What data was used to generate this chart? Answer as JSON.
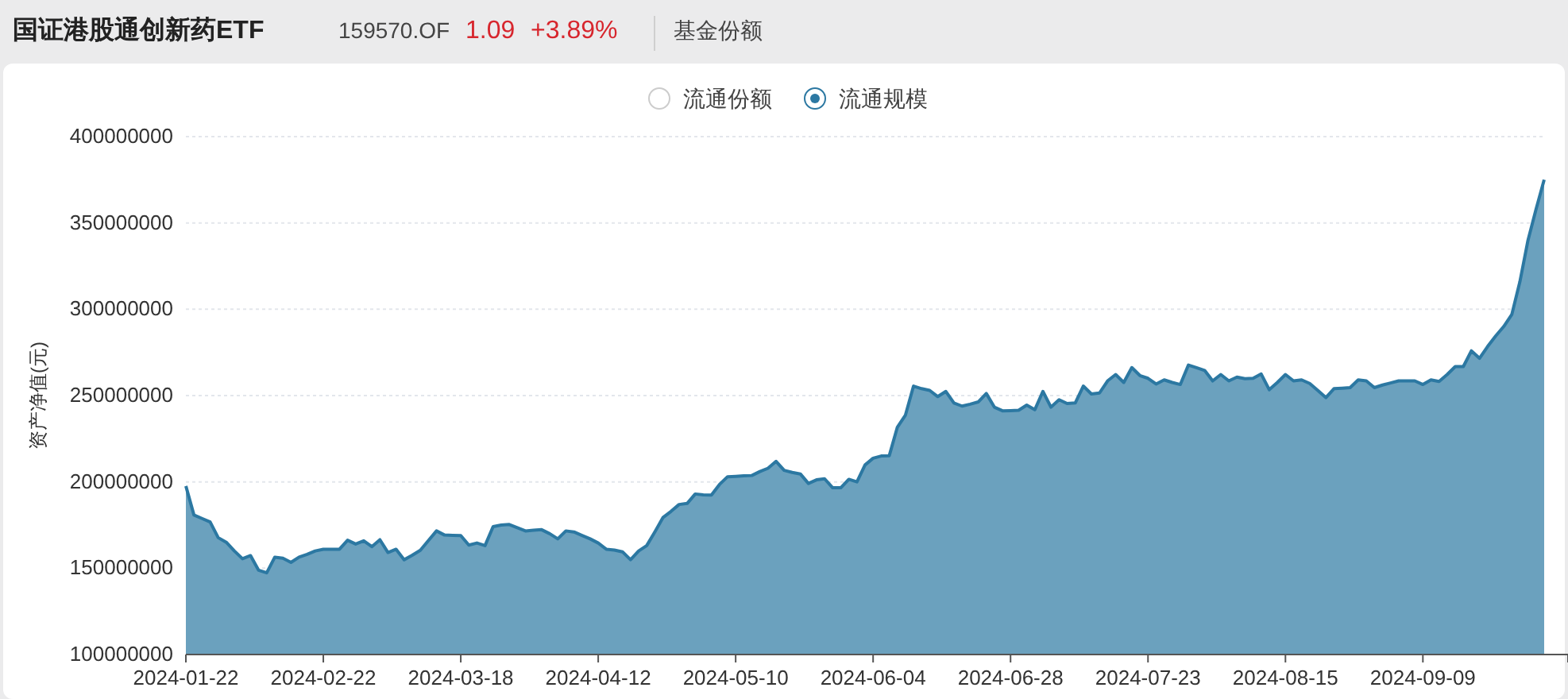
{
  "chart_data": {
    "type": "area",
    "title": "国证港股通创新药ETF",
    "subtitle": "159570.OF",
    "ylabel": "资产净值(元)",
    "annotations": [
      "1.09",
      "+3.89%",
      "基金份额",
      "流通份额"
    ],
    "legend": "top",
    "grid": "y",
    "ylim": [
      100000000,
      400000000
    ],
    "yticks": [
      100000000,
      150000000,
      200000000,
      250000000,
      300000000,
      350000000,
      400000000
    ],
    "categories": [
      "2024-01-22",
      null,
      null,
      null,
      null,
      null,
      null,
      null,
      null,
      null,
      null,
      null,
      null,
      null,
      null,
      null,
      null,
      "2024-02-22",
      null,
      null,
      null,
      null,
      null,
      null,
      null,
      null,
      null,
      null,
      null,
      null,
      null,
      null,
      null,
      null,
      "2024-03-18",
      null,
      null,
      null,
      null,
      null,
      null,
      null,
      null,
      null,
      null,
      null,
      null,
      null,
      null,
      null,
      null,
      "2024-04-12",
      null,
      null,
      null,
      null,
      null,
      null,
      null,
      null,
      null,
      null,
      null,
      null,
      null,
      null,
      null,
      null,
      "2024-05-10",
      null,
      null,
      null,
      null,
      null,
      null,
      null,
      null,
      null,
      null,
      null,
      null,
      null,
      null,
      null,
      null,
      "2024-06-04",
      null,
      null,
      null,
      null,
      null,
      null,
      null,
      null,
      null,
      null,
      null,
      null,
      null,
      null,
      null,
      null,
      "2024-06-28",
      null,
      null,
      null,
      null,
      null,
      null,
      null,
      null,
      null,
      null,
      null,
      null,
      null,
      null,
      null,
      null,
      "2024-07-23",
      null,
      null,
      null,
      null,
      null,
      null,
      null,
      null,
      null,
      null,
      null,
      null,
      null,
      null,
      null,
      null,
      "2024-08-15",
      null,
      null,
      null,
      null,
      null,
      null,
      null,
      null,
      null,
      null,
      null,
      null,
      null,
      null,
      null,
      null,
      "2024-09-09",
      null,
      null,
      null,
      null,
      null,
      null,
      null,
      null,
      null,
      null,
      null,
      null,
      null,
      null,
      null
    ],
    "series": [
      {
        "name": "流通规模",
        "color": "#2c78a2",
        "values": [
          197600000,
          180800000,
          178800000,
          176800000,
          167700000,
          165000000,
          160000000,
          155500000,
          157300000,
          148800000,
          147300000,
          156400000,
          155800000,
          153400000,
          156400000,
          158000000,
          160000000,
          161000000,
          161000000,
          161000000,
          166200000,
          164000000,
          165900000,
          162500000,
          166500000,
          159100000,
          161000000,
          154900000,
          157500000,
          160400000,
          166000000,
          171600000,
          169200000,
          169000000,
          168900000,
          163400000,
          164600000,
          163100000,
          174100000,
          175000000,
          175300000,
          173500000,
          171600000,
          172000000,
          172300000,
          170000000,
          167000000,
          171600000,
          171000000,
          169000000,
          167000000,
          164600000,
          161000000,
          160500000,
          159500000,
          154900000,
          160000000,
          163100000,
          171000000,
          179300000,
          182900000,
          186900000,
          187500000,
          193000000,
          192500000,
          192400000,
          198500000,
          203000000,
          203200000,
          203500000,
          203700000,
          206000000,
          207900000,
          211900000,
          206700000,
          205500000,
          204600000,
          199100000,
          201200000,
          201800000,
          196600000,
          196600000,
          201500000,
          200000000,
          209800000,
          213700000,
          215000000,
          215200000,
          231700000,
          238700000,
          255500000,
          254000000,
          253000000,
          249400000,
          252400000,
          245700000,
          243900000,
          245000000,
          246300000,
          251200000,
          243300000,
          241200000,
          241300000,
          241500000,
          244500000,
          241800000,
          252400000,
          243300000,
          247600000,
          245400000,
          245700000,
          255500000,
          250900000,
          251500000,
          258500000,
          262200000,
          257600000,
          266200000,
          261600000,
          260000000,
          256700000,
          259100000,
          257600000,
          256400000,
          267700000,
          266200000,
          264600000,
          258500000,
          262200000,
          258500000,
          260700000,
          259800000,
          260000000,
          262500000,
          253400000,
          257600000,
          262200000,
          258500000,
          259100000,
          257000000,
          253000000,
          248800000,
          254000000,
          254300000,
          254600000,
          259100000,
          258500000,
          254600000,
          256100000,
          257300000,
          258500000,
          258500000,
          258500000,
          256400000,
          259100000,
          258200000,
          262200000,
          266800000,
          266800000,
          275900000,
          271600000,
          278400000,
          284500000,
          290000000,
          297000000,
          316000000,
          340000000,
          358000000,
          375000000
        ]
      }
    ]
  }
}
